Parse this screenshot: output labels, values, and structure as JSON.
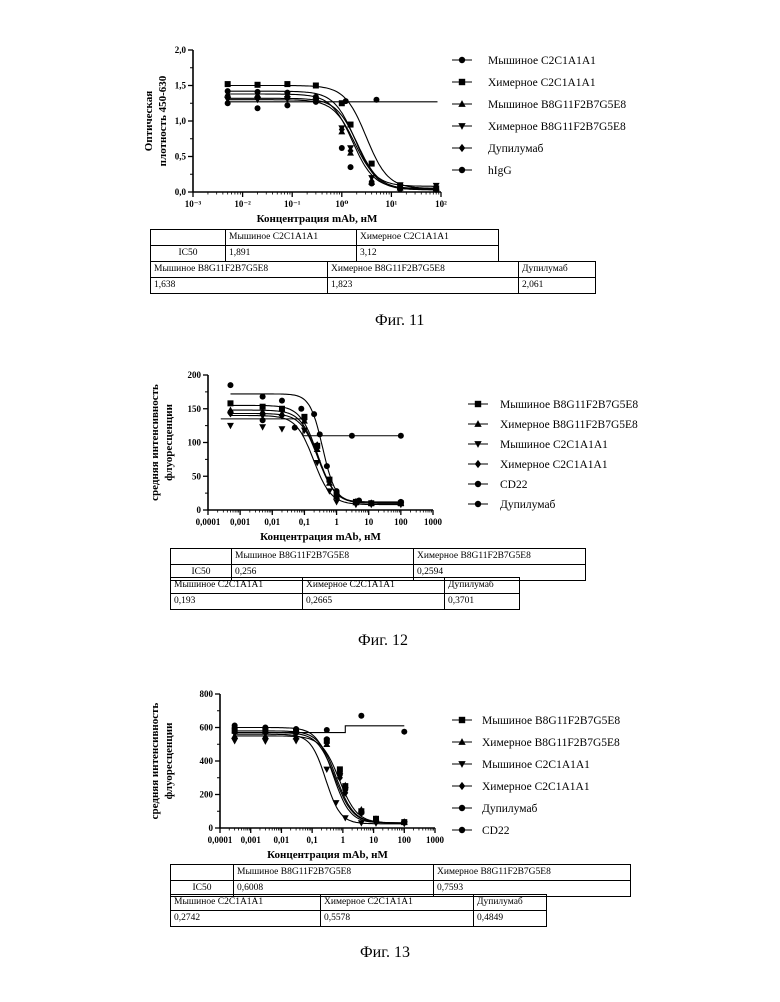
{
  "figures": [
    {
      "chart_data": {
        "type": "scatter",
        "xscale": "log",
        "xlim": [
          0.001,
          100
        ],
        "ylim": [
          0,
          2.0
        ],
        "ylabel_lines": [
          "Оптическая",
          "плотность 450-630"
        ],
        "xlabel": "Концентрация mAb, нМ",
        "ytick_labels": [
          "0,0",
          "0,5",
          "1,0",
          "1,5",
          "2,0"
        ],
        "xtick_labels": [
          "10⁻³",
          "10⁻²",
          "10⁻¹",
          "10⁰",
          "10¹",
          "10²"
        ],
        "legend_position": "right",
        "series": [
          {
            "name": "Мышиное С2С1А1А1",
            "marker": "circle",
            "top": 1.42,
            "bottom": 0.03,
            "ec50": 1.891,
            "hill": 2.0,
            "x": [
              0.005,
              0.02,
              0.08,
              0.3,
              1.0,
              1.5,
              4,
              15,
              80
            ],
            "y": [
              1.42,
              1.41,
              1.4,
              1.34,
              0.62,
              0.35,
              0.12,
              0.04,
              0.03
            ]
          },
          {
            "name": "Химерное С2С1А1А1",
            "marker": "square",
            "top": 1.5,
            "bottom": 0.05,
            "ec50": 3.12,
            "hill": 2.0,
            "x": [
              0.005,
              0.02,
              0.08,
              0.3,
              1.0,
              1.5,
              4,
              15,
              80
            ],
            "y": [
              1.52,
              1.51,
              1.52,
              1.5,
              1.25,
              0.95,
              0.4,
              0.08,
              0.05
            ]
          },
          {
            "name": "Мышиное B8G11F2B7G5E8",
            "marker": "triangle-up",
            "top": 1.38,
            "bottom": 0.05,
            "ec50": 1.638,
            "hill": 2.0,
            "x": [
              0.005,
              0.02,
              0.08,
              0.3,
              1.0,
              1.5,
              4,
              15,
              80
            ],
            "y": [
              1.38,
              1.37,
              1.37,
              1.33,
              0.85,
              0.55,
              0.14,
              0.06,
              0.05
            ]
          },
          {
            "name": "Химерное B8G11F2B7G5E8",
            "marker": "triangle-down",
            "top": 1.3,
            "bottom": 0.08,
            "ec50": 1.823,
            "hill": 2.0,
            "x": [
              0.005,
              0.02,
              0.08,
              0.3,
              1.0,
              1.5,
              4,
              15,
              80
            ],
            "y": [
              1.3,
              1.3,
              1.31,
              1.28,
              0.9,
              0.62,
              0.2,
              0.1,
              0.09
            ]
          },
          {
            "name": "Дупилумаб",
            "marker": "diamond",
            "top": 1.32,
            "bottom": 0.04,
            "ec50": 2.061,
            "hill": 2.0,
            "x": [
              0.005,
              0.02,
              0.08,
              0.3,
              1.0,
              1.5,
              4,
              15,
              80
            ],
            "y": [
              1.33,
              1.32,
              1.32,
              1.3,
              0.88,
              0.58,
              0.15,
              0.05,
              0.04
            ]
          },
          {
            "name": "hIgG",
            "marker": "circle",
            "flat": 1.27,
            "x": [
              0.005,
              0.02,
              0.08,
              0.3,
              1.2,
              5
            ],
            "y": [
              1.25,
              1.18,
              1.22,
              1.27,
              1.28,
              1.3
            ]
          }
        ]
      },
      "ic50_table": {
        "label": "IC50",
        "row1": {
          "h1": "Мышиное С2С1А1А1",
          "h2": "Химерное С2С1А1А1",
          "v1": "1,891",
          "v2": "3,12"
        },
        "row2": {
          "h1": "Мышиное B8G11F2B7G5E8",
          "h2": "Химерное B8G11F2B7G5E8",
          "h3": "Дупилумаб",
          "v1": "1,638",
          "v2": "1,823",
          "v3": "2,061"
        }
      },
      "caption": "Фиг. 11"
    },
    {
      "chart_data": {
        "type": "scatter",
        "xscale": "log",
        "xlim": [
          0.0001,
          1000
        ],
        "ylim": [
          0,
          200
        ],
        "ylabel_lines": [
          "средняя интенсивность",
          "флуоресценции"
        ],
        "xlabel": "Концентрация mAb, нМ",
        "ytick_labels": [
          "0",
          "50",
          "100",
          "150",
          "200"
        ],
        "xtick_labels": [
          "0,0001",
          "0,001",
          "0,01",
          "0,1",
          "1",
          "10",
          "100",
          "1000"
        ],
        "legend_position": "right",
        "series": [
          {
            "name": "Мышиное B8G11F2B7G5E8",
            "marker": "square",
            "top": 155,
            "bottom": 10,
            "ec50": 0.256,
            "hill": 1.6,
            "x": [
              0.0005,
              0.005,
              0.02,
              0.1,
              0.25,
              0.6,
              1,
              4,
              12,
              100
            ],
            "y": [
              158,
              153,
              150,
              138,
              95,
              45,
              22,
              12,
              10,
              10
            ]
          },
          {
            "name": "Химерное B8G11F2B7G5E8",
            "marker": "triangle-up",
            "top": 148,
            "bottom": 10,
            "ec50": 0.2594,
            "hill": 1.6,
            "x": [
              0.0005,
              0.005,
              0.02,
              0.1,
              0.25,
              0.6,
              1,
              4,
              12,
              100
            ],
            "y": [
              148,
              146,
              143,
              132,
              90,
              40,
              20,
              11,
              10,
              10
            ]
          },
          {
            "name": "Мышиное С2С1А1А1",
            "marker": "triangle-down",
            "top": 140,
            "bottom": 8,
            "ec50": 0.193,
            "hill": 1.6,
            "x": [
              0.0005,
              0.005,
              0.02,
              0.1,
              0.25,
              0.6,
              1,
              4,
              12,
              100
            ],
            "y": [
              125,
              123,
              120,
              118,
              70,
              28,
              12,
              8,
              8,
              8
            ]
          },
          {
            "name": "Химерное С2С1А1А1",
            "marker": "diamond",
            "top": 143,
            "bottom": 10,
            "ec50": 0.2665,
            "hill": 1.6,
            "x": [
              0.0005,
              0.005,
              0.02,
              0.1,
              0.25,
              0.6,
              1,
              4,
              12,
              100
            ],
            "y": [
              143,
              141,
              140,
              134,
              96,
              42,
              20,
              12,
              10,
              10
            ]
          },
          {
            "name": "CD22",
            "marker": "circle",
            "flat": 110,
            "step_from": 135,
            "step_x": 0.09,
            "x": [
              0.0005,
              0.005,
              0.05,
              0.3,
              3,
              100
            ],
            "y": [
              145,
              133,
              122,
              112,
              110,
              110
            ]
          },
          {
            "name": "Дупилумаб",
            "marker": "circle",
            "top": 172,
            "bottom": 12,
            "ec50": 0.3701,
            "hill": 2.2,
            "x": [
              0.0005,
              0.005,
              0.02,
              0.08,
              0.2,
              0.5,
              1,
              5,
              100
            ],
            "y": [
              185,
              168,
              162,
              150,
              142,
              65,
              28,
              14,
              12
            ]
          }
        ]
      },
      "ic50_table": {
        "label": "IC50",
        "row1": {
          "h1": "Мышиное B8G11F2B7G5E8",
          "h2": "Химерное B8G11F2B7G5E8",
          "v1": "0,256",
          "v2": "0,2594"
        },
        "row2": {
          "h1": "Мышиное С2С1А1А1",
          "h2": "Химерное С2С1А1А1",
          "h3": "Дупилумаб",
          "v1": "0,193",
          "v2": "0,2665",
          "v3": "0,3701"
        }
      },
      "caption": "Фиг. 12"
    },
    {
      "chart_data": {
        "type": "scatter",
        "xscale": "log",
        "xlim": [
          0.0001,
          1000
        ],
        "ylim": [
          0,
          800
        ],
        "ylabel_lines": [
          "средняя интенсивность",
          "флуоресценции"
        ],
        "xlabel": "Концентрация mAb, нМ",
        "ytick_labels": [
          "0",
          "200",
          "400",
          "600",
          "800"
        ],
        "xtick_labels": [
          "0,0001",
          "0,001",
          "0,01",
          "0,1",
          "1",
          "10",
          "100",
          "1000"
        ],
        "legend_position": "right",
        "series": [
          {
            "name": "Мышиное B8G11F2B7G5E8",
            "marker": "square",
            "top": 580,
            "bottom": 30,
            "ec50": 0.6008,
            "hill": 1.5,
            "x": [
              0.0003,
              0.003,
              0.03,
              0.3,
              0.8,
              1.2,
              4,
              12,
              100
            ],
            "y": [
              580,
              578,
              575,
              520,
              350,
              250,
              100,
              55,
              35
            ]
          },
          {
            "name": "Химерное B8G11F2B7G5E8",
            "marker": "triangle-up",
            "top": 550,
            "bottom": 30,
            "ec50": 0.7593,
            "hill": 1.5,
            "x": [
              0.0003,
              0.003,
              0.03,
              0.3,
              0.8,
              1.2,
              4,
              12,
              100
            ],
            "y": [
              550,
              548,
              545,
              500,
              340,
              255,
              110,
              55,
              35
            ]
          },
          {
            "name": "Мышиное С2С1А1А1",
            "marker": "triangle-down",
            "top": 560,
            "bottom": 25,
            "ec50": 0.2742,
            "hill": 1.8,
            "x": [
              0.0003,
              0.003,
              0.03,
              0.3,
              0.6,
              1.2,
              4,
              12,
              100
            ],
            "y": [
              520,
              518,
              520,
              350,
              150,
              60,
              30,
              28,
              25
            ]
          },
          {
            "name": "Химерное С2С1А1А1",
            "marker": "diamond",
            "top": 570,
            "bottom": 30,
            "ec50": 0.5578,
            "hill": 1.5,
            "x": [
              0.0003,
              0.003,
              0.03,
              0.3,
              0.8,
              1.2,
              4,
              12,
              100
            ],
            "y": [
              570,
              568,
              565,
              510,
              300,
              210,
              90,
              50,
              35
            ]
          },
          {
            "name": "Дупилумаб",
            "marker": "circle",
            "top": 600,
            "bottom": 30,
            "ec50": 0.4849,
            "hill": 1.6,
            "x": [
              0.0003,
              0.003,
              0.03,
              0.3,
              0.8,
              1.2,
              4,
              12,
              100
            ],
            "y": [
              612,
              600,
              590,
              530,
              320,
              230,
              90,
              50,
              35
            ]
          },
          {
            "name": "CD22",
            "marker": "circle",
            "flat": 610,
            "step_from": 570,
            "step_x": 1.2,
            "x": [
              0.0003,
              0.003,
              0.03,
              0.3,
              4,
              100
            ],
            "y": [
              600,
              595,
              590,
              585,
              670,
              575
            ]
          }
        ]
      },
      "ic50_table": {
        "label": "IC50",
        "row1": {
          "h1": "Мышиное B8G11F2B7G5E8",
          "h2": "Химерное B8G11F2B7G5E8",
          "v1": "0,6008",
          "v2": "0,7593"
        },
        "row2": {
          "h1": "Мышиное С2С1А1А1",
          "h2": "Химерное С2С1А1А1",
          "h3": "Дупилумаб",
          "v1": "0,2742",
          "v2": "0,5578",
          "v3": "0,4849"
        }
      },
      "caption": "Фиг. 13"
    }
  ]
}
